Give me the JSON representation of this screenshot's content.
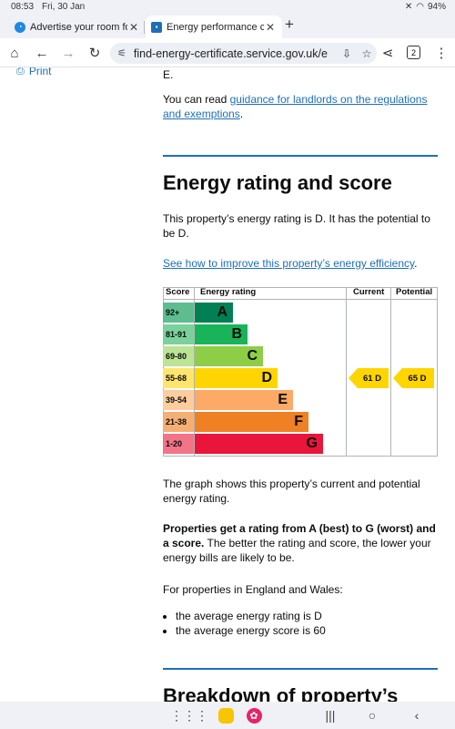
{
  "status_bar": {
    "time": "08:53",
    "date": "Fri, 30 Jan",
    "battery": "94%",
    "mute_icon": "mute-icon",
    "wifi_icon": "wifi-icon"
  },
  "tabs": [
    {
      "title": "Advertise your room for",
      "active": false
    },
    {
      "title": "Energy performance cer",
      "active": true
    }
  ],
  "toolbar": {
    "url": "find-energy-certificate.service.gov.uk/e",
    "tab_count": "2"
  },
  "page": {
    "print_label": "Print",
    "orphan_text": "E.",
    "guidance_prefix": "You can read ",
    "guidance_link": "guidance for landlords on the regulations and exemptions",
    "guidance_suffix": ".",
    "heading": "Energy rating and score",
    "rating_text": "This property’s energy rating is D. It has the potential to be D.",
    "improve_link": "See how to improve this property’s energy efficiency",
    "improve_suffix": ".",
    "graph_text": "The graph shows this property’s current and potential energy rating.",
    "bands_bold": "Properties get a rating from A (best) to G (worst) and a score.",
    "bands_rest": " The better the rating and score, the lower your energy bills are likely to be.",
    "avg_intro": "For properties in England and Wales:",
    "avg_items": [
      "the average energy rating is D",
      "the average energy score is 60"
    ],
    "next_heading": "Breakdown of property’s"
  },
  "chart_data": {
    "type": "table",
    "headers": {
      "score": "Score",
      "rating": "Energy rating",
      "current": "Current",
      "potential": "Potential"
    },
    "bands": [
      {
        "score": "92+",
        "letter": "A",
        "color": "#008054",
        "score_bg": "#5dbd8f",
        "fraction": 0.25
      },
      {
        "score": "81-91",
        "letter": "B",
        "color": "#19b459",
        "score_bg": "#7ad19a",
        "fraction": 0.35
      },
      {
        "score": "69-80",
        "letter": "C",
        "color": "#8dce46",
        "score_bg": "#bde394",
        "fraction": 0.45
      },
      {
        "score": "55-68",
        "letter": "D",
        "color": "#ffd500",
        "score_bg": "#ffe56e",
        "fraction": 0.55
      },
      {
        "score": "39-54",
        "letter": "E",
        "color": "#fcaa65",
        "score_bg": "#fdcc9f",
        "fraction": 0.65
      },
      {
        "score": "21-38",
        "letter": "F",
        "color": "#ef8023",
        "score_bg": "#f5ae74",
        "fraction": 0.75
      },
      {
        "score": "1-20",
        "letter": "G",
        "color": "#e9153b",
        "score_bg": "#f27489",
        "fraction": 0.85
      }
    ],
    "current": {
      "label": "61 D",
      "band_index": 3,
      "value": 61
    },
    "potential": {
      "label": "65 D",
      "band_index": 3,
      "value": 65
    }
  },
  "nav": {
    "apps_icon": "apps-grid-icon",
    "recents_icon": "recents-icon",
    "home_icon": "home-circle-icon",
    "back_icon": "back-chevron-icon"
  }
}
